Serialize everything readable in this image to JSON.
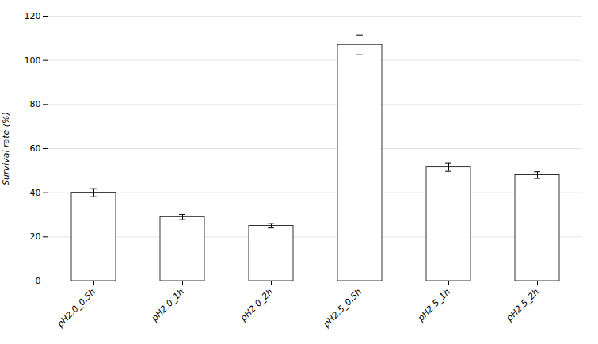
{
  "chart_data": {
    "type": "bar",
    "categories": [
      "pH2.0_0.5h",
      "pH2.0_1h",
      "pH2.0_2h",
      "pH2.5_0.5h",
      "pH2.5_1h",
      "pH2.5_2h"
    ],
    "values": [
      40.0,
      29.0,
      25.0,
      107.0,
      51.5,
      48.0
    ],
    "errors": [
      1.8,
      1.2,
      1.0,
      4.5,
      1.8,
      1.5
    ],
    "ylabel": "Survival rate (%)",
    "ylim": [
      0,
      120
    ],
    "yticks": [
      0,
      20,
      40,
      60,
      80,
      100,
      120
    ],
    "color": "#ffffff",
    "grid": true
  }
}
